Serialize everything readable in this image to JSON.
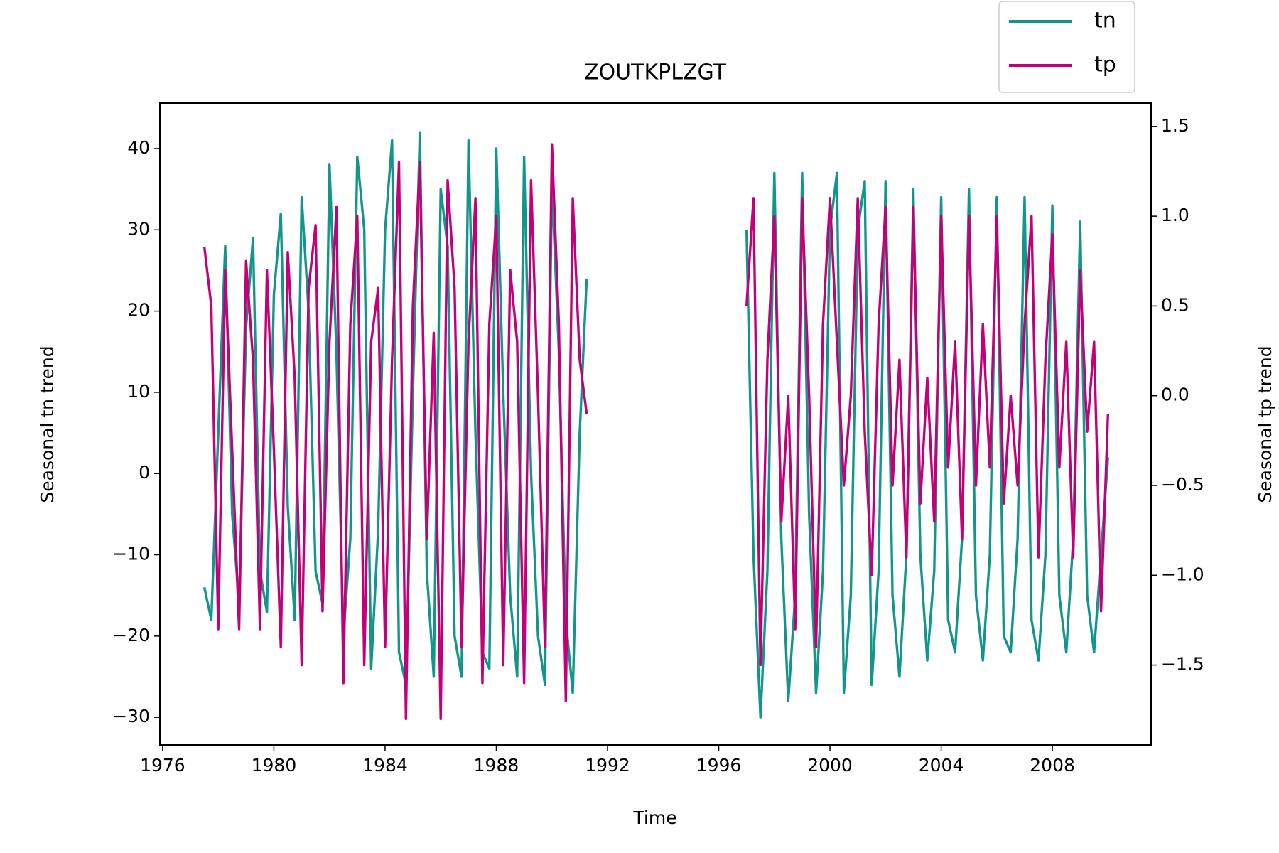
{
  "chart_data": {
    "type": "line",
    "title": "ZOUTKPLZGT",
    "x_label": "Time",
    "y_label": "Seasonal tn trend",
    "y2_label": "Seasonal tp trend",
    "x": [
      1977.5,
      1977.75,
      1978.0,
      1978.25,
      1978.5,
      1978.75,
      1979.0,
      1979.25,
      1979.5,
      1979.75,
      1980.0,
      1980.25,
      1980.5,
      1980.75,
      1981.0,
      1981.25,
      1981.5,
      1981.75,
      1982.0,
      1982.25,
      1982.5,
      1982.75,
      1983.0,
      1983.25,
      1983.5,
      1983.75,
      1984.0,
      1984.25,
      1984.5,
      1984.75,
      1985.0,
      1985.25,
      1985.5,
      1985.75,
      1986.0,
      1986.25,
      1986.5,
      1986.75,
      1987.0,
      1987.25,
      1987.5,
      1987.75,
      1988.0,
      1988.25,
      1988.5,
      1988.75,
      1989.0,
      1989.25,
      1989.5,
      1989.75,
      1990.0,
      1990.25,
      1990.5,
      1990.75,
      1991.0,
      1991.25,
      1994.0,
      1997.0,
      1997.25,
      1997.5,
      1997.75,
      1998.0,
      1998.25,
      1998.5,
      1998.75,
      1999.0,
      1999.25,
      1999.5,
      1999.75,
      2000.0,
      2000.25,
      2000.5,
      2000.75,
      2001.0,
      2001.25,
      2001.5,
      2001.75,
      2002.0,
      2002.25,
      2002.5,
      2002.75,
      2003.0,
      2003.25,
      2003.5,
      2003.75,
      2004.0,
      2004.25,
      2004.5,
      2004.75,
      2005.0,
      2005.25,
      2005.5,
      2005.75,
      2006.0,
      2006.25,
      2006.5,
      2006.75,
      2007.0,
      2007.25,
      2007.5,
      2007.75,
      2008.0,
      2008.25,
      2008.5,
      2008.75,
      2009.0,
      2009.25,
      2009.5,
      2009.75,
      2010.0
    ],
    "series": [
      {
        "name": "tn",
        "color": "#12958a",
        "axis": "y",
        "values": [
          -14,
          -18,
          5,
          28,
          -5,
          -16,
          18,
          29,
          -12,
          -17,
          22,
          32,
          -4,
          -18,
          34,
          20,
          -12,
          -16,
          38,
          15,
          -20,
          -8,
          39,
          30,
          -24,
          -7,
          30,
          41,
          -22,
          -26,
          10,
          42,
          -12,
          -25,
          35,
          28,
          -20,
          -25,
          41,
          5,
          -22,
          -24,
          40,
          10,
          -15,
          -25,
          39,
          0,
          -20,
          -26,
          36,
          15,
          -18,
          -27,
          5,
          24,
          null,
          30,
          -10,
          -30,
          -12,
          37,
          -8,
          -28,
          -15,
          37,
          -5,
          -27,
          -12,
          30,
          37,
          -27,
          -15,
          30,
          36,
          -26,
          -12,
          36,
          -15,
          -25,
          -10,
          35,
          -10,
          -23,
          -12,
          34,
          -18,
          -22,
          -8,
          35,
          -15,
          -23,
          -10,
          34,
          -20,
          -22,
          -8,
          34,
          -18,
          -23,
          -10,
          33,
          -15,
          -22,
          -8,
          31,
          -15,
          -22,
          -10,
          2
        ]
      },
      {
        "name": "tp",
        "color": "#c2007a",
        "axis": "y2",
        "values": [
          0.83,
          0.5,
          -1.3,
          0.7,
          -0.3,
          -1.3,
          0.75,
          0.2,
          -1.3,
          0.7,
          -0.3,
          -1.4,
          0.8,
          0.1,
          -1.5,
          0.6,
          0.95,
          -1.2,
          0.3,
          1.05,
          -1.6,
          0.4,
          1.0,
          -1.5,
          0.3,
          0.6,
          -1.4,
          0.2,
          1.3,
          -1.8,
          0.5,
          1.3,
          -0.8,
          0.35,
          -1.8,
          1.2,
          0.6,
          -1.4,
          0.3,
          1.1,
          -1.6,
          0.4,
          1.0,
          -1.5,
          0.7,
          0.3,
          -1.6,
          1.2,
          0.0,
          -1.4,
          1.4,
          0.4,
          -1.7,
          1.1,
          0.2,
          -0.1,
          null,
          0.5,
          1.1,
          -1.5,
          0.2,
          1.0,
          -0.7,
          0.0,
          -1.3,
          1.1,
          0.0,
          -1.4,
          0.4,
          1.1,
          0.3,
          -0.5,
          0.0,
          1.1,
          -0.2,
          -1.0,
          0.4,
          1.05,
          -0.5,
          0.2,
          -0.9,
          1.05,
          -0.6,
          0.1,
          -0.7,
          1.0,
          -0.4,
          0.3,
          -0.8,
          1.0,
          -0.5,
          0.4,
          -0.4,
          1.0,
          -0.6,
          0.0,
          -0.5,
          0.4,
          1.0,
          -0.9,
          0.2,
          0.9,
          -0.4,
          0.3,
          -0.9,
          0.7,
          -0.2,
          0.3,
          -1.2,
          -0.1
        ]
      }
    ],
    "xlim": [
      1975.9,
      2011.55
    ],
    "xticks": [
      1976,
      1980,
      1984,
      1988,
      1992,
      1996,
      2000,
      2004,
      2008
    ],
    "ylim": [
      -33.4,
      45.6
    ],
    "yticks": [
      {
        "value": -30,
        "label": "−30"
      },
      {
        "value": -20,
        "label": "−20"
      },
      {
        "value": -10,
        "label": "−10"
      },
      0,
      10,
      20,
      30,
      40
    ],
    "y2lim": [
      -1.945,
      1.63
    ],
    "y2ticks": [
      {
        "value": -1.5,
        "label": "−1.5"
      },
      {
        "value": -1.0,
        "label": "−1.0"
      },
      {
        "value": -0.5,
        "label": "−0.5"
      },
      {
        "value": 0.0,
        "label": "0.0"
      },
      0.5,
      {
        "value": 1.0,
        "label": "1.0"
      },
      1.5
    ],
    "grid": false,
    "legend": "upper right"
  }
}
